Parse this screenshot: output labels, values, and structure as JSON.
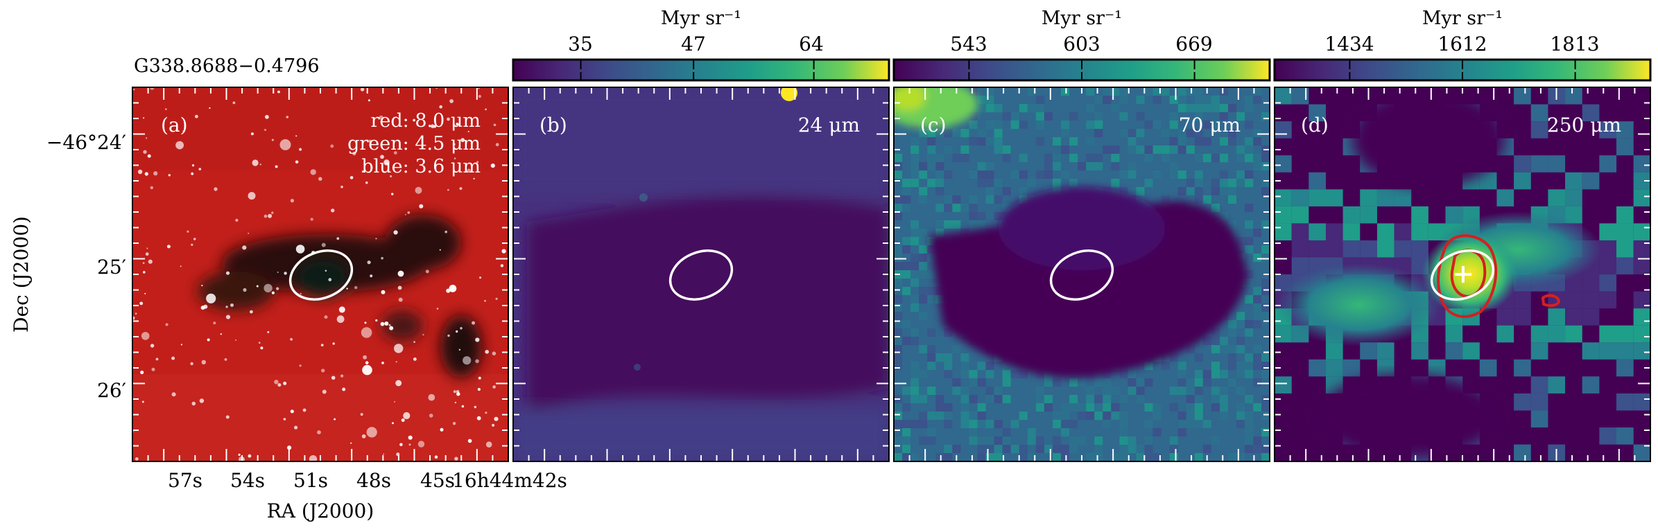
{
  "figure": {
    "source_name": "G338.8688−0.4796",
    "y_axis_label": "Dec (J2000)",
    "x_axis_label": "RA (J2000)",
    "dec_ticks": [
      "−46°24′",
      "25′",
      "26′"
    ],
    "ra_ticks": [
      "57s",
      "54s",
      "51s",
      "48s",
      "45s",
      "16h44m42s"
    ]
  },
  "panels": [
    {
      "id": "a",
      "letter": "(a)",
      "band_lines": [
        "red: 8.0 μm",
        "green: 4.5 μm",
        "blue: 3.6 μm"
      ],
      "colormap": "rgb-composite",
      "colors": {
        "background": "#c21f1a",
        "dark_cloud": "#1a0d0b",
        "stars": "#ffffff"
      }
    },
    {
      "id": "b",
      "letter": "(b)",
      "band": "24 μm",
      "colorbar": {
        "unit": "Myr sr⁻¹",
        "ticks": [
          "35",
          "47",
          "64"
        ],
        "tick_fractions": [
          0.18,
          0.48,
          0.8
        ]
      },
      "colormap": "viridis"
    },
    {
      "id": "c",
      "letter": "(c)",
      "band": "70 μm",
      "colorbar": {
        "unit": "Myr sr⁻¹",
        "ticks": [
          "543",
          "603",
          "669"
        ],
        "tick_fractions": [
          0.2,
          0.5,
          0.8
        ]
      },
      "colormap": "viridis"
    },
    {
      "id": "d",
      "letter": "(d)",
      "band": "250 μm",
      "colorbar": {
        "unit": "Myr sr⁻¹",
        "ticks": [
          "1434",
          "1612",
          "1813"
        ],
        "tick_fractions": [
          0.2,
          0.5,
          0.8
        ]
      },
      "colormap": "viridis",
      "overlay": {
        "contour_color": "#d42020",
        "marker": "white-cross"
      }
    }
  ],
  "colors": {
    "viridis_low": "#440154",
    "viridis_mid": "#21918c",
    "viridis_high": "#fde725",
    "ellipse": "#ffffff"
  }
}
